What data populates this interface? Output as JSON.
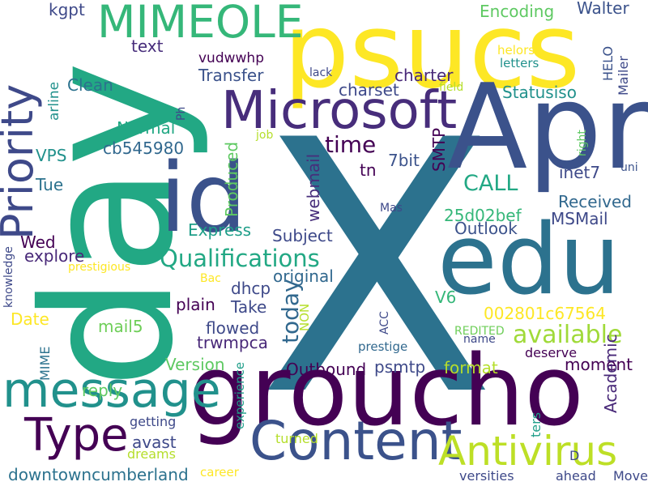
{
  "words": [
    {
      "text": "X",
      "color": "#2c728e"
    },
    {
      "text": "groucho",
      "color": "#440154"
    },
    {
      "text": "day",
      "color": "#22a884"
    },
    {
      "text": "psucs",
      "color": "#fde725"
    },
    {
      "text": "Apr",
      "color": "#3b528b"
    },
    {
      "text": "edu",
      "color": "#2c728e"
    },
    {
      "text": "id",
      "color": "#3b528b"
    },
    {
      "text": "Microsoft",
      "color": "#472d7b"
    },
    {
      "text": "Content",
      "color": "#3b528b"
    },
    {
      "text": "message",
      "color": "#21918c"
    },
    {
      "text": "Priority",
      "color": "#3e4989"
    },
    {
      "text": "Type",
      "color": "#440154"
    },
    {
      "text": "Antivirus",
      "color": "#bddf26"
    },
    {
      "text": "MIMEOLE",
      "color": "#35b779"
    },
    {
      "text": "Qualifications",
      "color": "#22a884"
    },
    {
      "text": "available",
      "color": "#a0da39"
    },
    {
      "text": "today",
      "color": "#31688e"
    },
    {
      "text": "time",
      "color": "#440154"
    },
    {
      "text": "Produced",
      "color": "#5ec962"
    },
    {
      "text": "Received",
      "color": "#31688e"
    },
    {
      "text": "CALL",
      "color": "#22a884"
    },
    {
      "text": "Encoding",
      "color": "#5ec962"
    },
    {
      "text": "Walter",
      "color": "#3b528b"
    },
    {
      "text": "kgpt",
      "color": "#3e4989"
    },
    {
      "text": "text",
      "color": "#472d7b"
    },
    {
      "text": "vudwwhp",
      "color": "#440154"
    },
    {
      "text": "Transfer",
      "color": "#3b528b"
    },
    {
      "text": "Clean",
      "color": "#2c728e"
    },
    {
      "text": "arline",
      "color": "#21918c"
    },
    {
      "text": "charter",
      "color": "#482878"
    },
    {
      "text": "charset",
      "color": "#3e4989"
    },
    {
      "text": "Statusiso",
      "color": "#21918c"
    },
    {
      "text": "Normal",
      "color": "#22a884"
    },
    {
      "text": "cb545980",
      "color": "#31688e"
    },
    {
      "text": "VPS",
      "color": "#21918c"
    },
    {
      "text": "Tue",
      "color": "#2c728e"
    },
    {
      "text": "Wed",
      "color": "#440154"
    },
    {
      "text": "explore",
      "color": "#482878"
    },
    {
      "text": "Express",
      "color": "#1f9e89"
    },
    {
      "text": "Subject",
      "color": "#3e4989"
    },
    {
      "text": "webmail",
      "color": "#472d7b"
    },
    {
      "text": "Outlook",
      "color": "#3b528b"
    },
    {
      "text": "MSMail",
      "color": "#3e4989"
    },
    {
      "text": "25d02bef",
      "color": "#35b779"
    },
    {
      "text": "7bit",
      "color": "#3b528b"
    },
    {
      "text": "SMTP",
      "color": "#440154"
    },
    {
      "text": "tn",
      "color": "#440154"
    },
    {
      "text": "inet7",
      "color": "#3e4989"
    },
    {
      "text": "HELO",
      "color": "#3b528b"
    },
    {
      "text": "Mailer",
      "color": "#3e4989"
    },
    {
      "text": "original",
      "color": "#31688e"
    },
    {
      "text": "dhcp",
      "color": "#3e4989"
    },
    {
      "text": "plain",
      "color": "#440154"
    },
    {
      "text": "Take",
      "color": "#3e4989"
    },
    {
      "text": "V6",
      "color": "#35b779"
    },
    {
      "text": "002801c67564",
      "color": "#fde725"
    },
    {
      "text": "Date",
      "color": "#fde725"
    },
    {
      "text": "mail5",
      "color": "#6ece58"
    },
    {
      "text": "flowed",
      "color": "#3e4989"
    },
    {
      "text": "trwmpca",
      "color": "#482878"
    },
    {
      "text": "Version",
      "color": "#5ec962"
    },
    {
      "text": "MIME",
      "color": "#2c728e"
    },
    {
      "text": "NON",
      "color": "#b5de2b"
    },
    {
      "text": "Outbound",
      "color": "#440154"
    },
    {
      "text": "psmtp",
      "color": "#3e4989"
    },
    {
      "text": "format",
      "color": "#b5de2b"
    },
    {
      "text": "moment",
      "color": "#440154"
    },
    {
      "text": "deserve",
      "color": "#440154"
    },
    {
      "text": "Academic",
      "color": "#482878"
    },
    {
      "text": "reply",
      "color": "#5ec962"
    },
    {
      "text": "avast",
      "color": "#3e4989"
    },
    {
      "text": "getting",
      "color": "#3e4989"
    },
    {
      "text": "experience",
      "color": "#1f9e89"
    },
    {
      "text": "turned",
      "color": "#b5de2b"
    },
    {
      "text": "dreams",
      "color": "#b5de2b"
    },
    {
      "text": "downtowncumberland",
      "color": "#2c728e"
    },
    {
      "text": "career",
      "color": "#fde725"
    },
    {
      "text": "versities",
      "color": "#3e4989"
    },
    {
      "text": "ters",
      "color": "#1f9e89"
    },
    {
      "text": "D",
      "color": "#3e4989"
    },
    {
      "text": "ahead",
      "color": "#3e4989"
    },
    {
      "text": "Move",
      "color": "#3e4989"
    },
    {
      "text": "prestige",
      "color": "#31688e"
    },
    {
      "text": "ACC",
      "color": "#3e4989"
    },
    {
      "text": "name",
      "color": "#3e4989"
    },
    {
      "text": "REDITED",
      "color": "#6ece58"
    },
    {
      "text": "lack",
      "color": "#3e4989"
    },
    {
      "text": "field",
      "color": "#b5de2b"
    },
    {
      "text": "helors",
      "color": "#fde725"
    },
    {
      "text": "letters",
      "color": "#21918c"
    },
    {
      "text": "right",
      "color": "#5ec962"
    },
    {
      "text": "uni",
      "color": "#3b528b"
    },
    {
      "text": "job",
      "color": "#b5de2b"
    },
    {
      "text": "Ph",
      "color": "#3e4989"
    },
    {
      "text": "Mas",
      "color": "#3e4989"
    },
    {
      "text": "Bac",
      "color": "#fde725"
    },
    {
      "text": "prestigious",
      "color": "#fde725"
    },
    {
      "text": "knowledge",
      "color": "#3e4989"
    }
  ]
}
